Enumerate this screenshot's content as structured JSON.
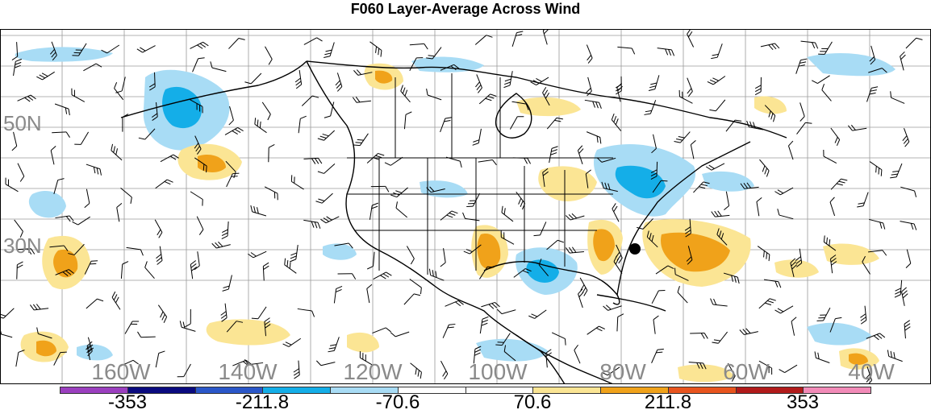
{
  "title": "F060 Layer-Average Across Wind",
  "lat_labels": [
    "50N",
    "30N"
  ],
  "lon_labels": [
    "160W",
    "140W",
    "120W",
    "100W",
    "80W",
    "60W",
    "40W"
  ],
  "legend": {
    "labels": [
      "-353",
      "-211.8",
      "-70.6",
      "70.6",
      "211.8",
      "353"
    ],
    "colors": [
      "#9b3fbf",
      "#0a0a7f",
      "#2a57c9",
      "#14aee8",
      "#a8dcf5",
      "#ffffff",
      "#ffffff",
      "#fbe594",
      "#f0a21a",
      "#e8541e",
      "#b11a1a",
      "#f28bb8"
    ]
  },
  "shading": {
    "negative_color": "#a8dcf5",
    "negative_strong_color": "#14aee8",
    "positive_color": "#fbe594",
    "positive_strong_color": "#f0a21a"
  },
  "marker": {
    "type": "station-dot",
    "color": "#000000"
  }
}
